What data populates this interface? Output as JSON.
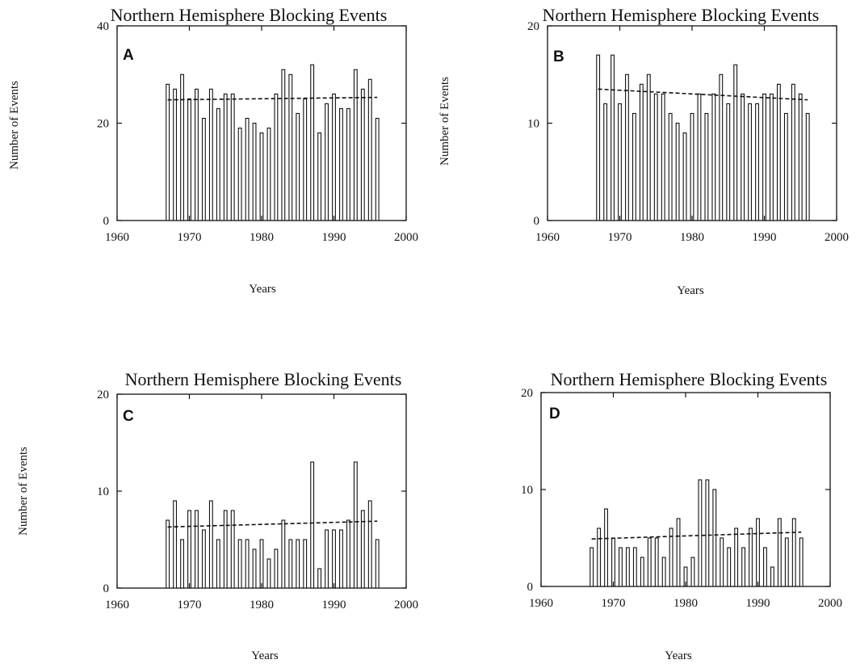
{
  "chart_data": [
    {
      "type": "bar",
      "panel": "A",
      "title": "Northern Hemisphere Blocking Events",
      "xlabel": "Years",
      "ylabel": "Number of Events",
      "xlim": [
        1960,
        2000
      ],
      "ylim": [
        0,
        40
      ],
      "x_ticks": [
        "1960",
        "1970",
        "1980",
        "1990",
        "2000"
      ],
      "y_ticks": [
        "0",
        "20",
        "40"
      ],
      "years": [
        1967,
        1968,
        1969,
        1970,
        1971,
        1972,
        1973,
        1974,
        1975,
        1976,
        1977,
        1978,
        1979,
        1980,
        1981,
        1982,
        1983,
        1984,
        1985,
        1986,
        1987,
        1988,
        1989,
        1990,
        1991,
        1992,
        1993,
        1994,
        1995,
        1996
      ],
      "values": [
        28,
        27,
        30,
        25,
        27,
        21,
        27,
        23,
        26,
        26,
        19,
        21,
        20,
        18,
        19,
        26,
        31,
        30,
        22,
        25,
        32,
        18,
        24,
        26,
        23,
        23,
        31,
        27,
        29,
        21
      ],
      "trend": [
        24.8,
        25.3
      ],
      "grid": false
    },
    {
      "type": "bar",
      "panel": "B",
      "title": "Northern Hemisphere Blocking Events",
      "xlabel": "Years",
      "ylabel": "Number of Events",
      "xlim": [
        1960,
        2000
      ],
      "ylim": [
        0,
        20
      ],
      "x_ticks": [
        "1960",
        "1970",
        "1980",
        "1990",
        "2000"
      ],
      "y_ticks": [
        "0",
        "10",
        "20"
      ],
      "years": [
        1967,
        1968,
        1969,
        1970,
        1971,
        1972,
        1973,
        1974,
        1975,
        1976,
        1977,
        1978,
        1979,
        1980,
        1981,
        1982,
        1983,
        1984,
        1985,
        1986,
        1987,
        1988,
        1989,
        1990,
        1991,
        1992,
        1993,
        1994,
        1995,
        1996
      ],
      "values": [
        17,
        12,
        17,
        12,
        15,
        11,
        14,
        15,
        13,
        13,
        11,
        10,
        9,
        11,
        13,
        11,
        13,
        15,
        12,
        16,
        13,
        12,
        12,
        13,
        13,
        14,
        11,
        14,
        13,
        11
      ],
      "trend": [
        13.5,
        12.4
      ],
      "grid": false
    },
    {
      "type": "bar",
      "panel": "C",
      "title": "Northern Hemisphere Blocking Events",
      "xlabel": "Years",
      "ylabel": "Number of Events",
      "xlim": [
        1960,
        2000
      ],
      "ylim": [
        0,
        20
      ],
      "x_ticks": [
        "1960",
        "1970",
        "1980",
        "1990",
        "2000"
      ],
      "y_ticks": [
        "0",
        "10",
        "20"
      ],
      "years": [
        1967,
        1968,
        1969,
        1970,
        1971,
        1972,
        1973,
        1974,
        1975,
        1976,
        1977,
        1978,
        1979,
        1980,
        1981,
        1982,
        1983,
        1984,
        1985,
        1986,
        1987,
        1988,
        1989,
        1990,
        1991,
        1992,
        1993,
        1994,
        1995,
        1996
      ],
      "values": [
        7,
        9,
        5,
        8,
        8,
        6,
        9,
        5,
        8,
        8,
        5,
        5,
        4,
        5,
        3,
        4,
        7,
        5,
        5,
        5,
        13,
        2,
        6,
        6,
        6,
        7,
        13,
        8,
        9,
        5
      ],
      "trend": [
        6.3,
        6.9
      ],
      "grid": false
    },
    {
      "type": "bar",
      "panel": "D",
      "title": "Northern Hemisphere Blocking Events",
      "xlabel": "Years",
      "ylabel": "",
      "xlim": [
        1960,
        2000
      ],
      "ylim": [
        0,
        20
      ],
      "x_ticks": [
        "1960",
        "1970",
        "1980",
        "1990",
        "2000"
      ],
      "y_ticks": [
        "0",
        "10",
        "20"
      ],
      "years": [
        1967,
        1968,
        1969,
        1970,
        1971,
        1972,
        1973,
        1974,
        1975,
        1976,
        1977,
        1978,
        1979,
        1980,
        1981,
        1982,
        1983,
        1984,
        1985,
        1986,
        1987,
        1988,
        1989,
        1990,
        1991,
        1992,
        1993,
        1994,
        1995,
        1996
      ],
      "values": [
        4,
        6,
        8,
        5,
        4,
        4,
        4,
        3,
        5,
        5,
        3,
        6,
        7,
        2,
        3,
        11,
        11,
        10,
        5,
        4,
        6,
        4,
        6,
        7,
        4,
        2,
        7,
        5,
        7,
        5
      ],
      "trend": [
        4.9,
        5.6
      ],
      "grid": false
    }
  ]
}
